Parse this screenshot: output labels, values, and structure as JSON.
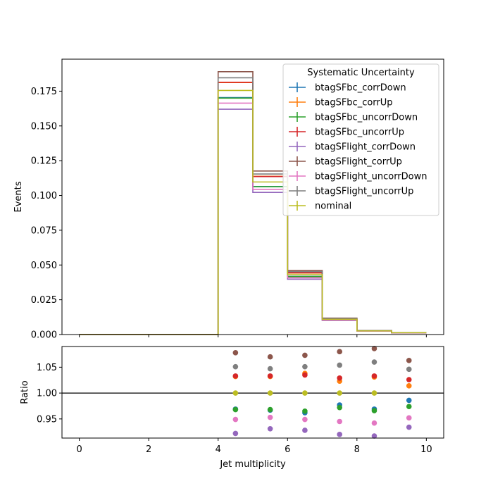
{
  "chart_data": {
    "type": "line",
    "main_panel": {
      "ylabel": "Events",
      "ylim": [
        0,
        0.198
      ],
      "yticks": [
        "0.000",
        "0.025",
        "0.050",
        "0.075",
        "0.100",
        "0.125",
        "0.150",
        "0.175"
      ],
      "bin_edges": [
        0,
        1,
        2,
        3,
        4,
        5,
        6,
        7,
        8,
        9,
        10
      ],
      "style": "step",
      "series": [
        {
          "name": "btagSFbc_corrDown",
          "color": "#1f77b4",
          "values": [
            0,
            0,
            0,
            0,
            0.1704,
            0.1064,
            0.0418,
            0.0106,
            0.0026,
            0.0012
          ]
        },
        {
          "name": "btagSFbc_corrUp",
          "color": "#ff7f0e",
          "values": [
            0,
            0,
            0,
            0,
            0.1812,
            0.1138,
            0.0442,
            0.0111,
            0.0027,
            0.0014
          ]
        },
        {
          "name": "btagSFbc_uncorrDown",
          "color": "#2ca02c",
          "values": [
            0,
            0,
            0,
            0,
            0.17,
            0.1063,
            0.0416,
            0.0106,
            0.0026,
            0.0012
          ]
        },
        {
          "name": "btagSFbc_uncorrUp",
          "color": "#d62728",
          "values": [
            0,
            0,
            0,
            0,
            0.1814,
            0.1136,
            0.0444,
            0.0112,
            0.0027,
            0.0013
          ]
        },
        {
          "name": "btagSFlight_corrDown",
          "color": "#9467bd",
          "values": [
            0,
            0,
            0,
            0,
            0.162,
            0.1022,
            0.0398,
            0.0101,
            0.0024,
            0.0011
          ]
        },
        {
          "name": "btagSFlight_corrUp",
          "color": "#8c564b",
          "values": [
            0,
            0,
            0,
            0,
            0.189,
            0.1176,
            0.046,
            0.0118,
            0.0029,
            0.0014
          ]
        },
        {
          "name": "btagSFlight_uncorrDown",
          "color": "#e377c2",
          "values": [
            0,
            0,
            0,
            0,
            0.1664,
            0.1044,
            0.0408,
            0.0104,
            0.0025,
            0.0012
          ]
        },
        {
          "name": "btagSFlight_uncorrUp",
          "color": "#7f7f7f",
          "values": [
            0,
            0,
            0,
            0,
            0.1846,
            0.1154,
            0.0452,
            0.0115,
            0.0028,
            0.0014
          ]
        },
        {
          "name": "nominal",
          "color": "#bcbd22",
          "values": [
            0,
            0,
            0,
            0,
            0.1755,
            0.1097,
            0.043,
            0.0109,
            0.0026,
            0.0013
          ]
        }
      ],
      "legend": {
        "title": "Systematic Uncertainty",
        "placement": "top-right"
      }
    },
    "ratio_panel": {
      "ylabel": "Ratio",
      "ylim": [
        0.913,
        1.09
      ],
      "yticks": [
        "0.95",
        "1.00",
        "1.05"
      ],
      "reference_line": 1.0,
      "x": [
        4.5,
        5.5,
        6.5,
        7.5,
        8.5,
        9.5
      ],
      "series": [
        {
          "name": "btagSFbc_corrDown",
          "color": "#1f77b4",
          "values": [
            0.969,
            0.967,
            0.962,
            0.977,
            0.969,
            0.986
          ]
        },
        {
          "name": "btagSFbc_corrUp",
          "color": "#ff7f0e",
          "values": [
            1.032,
            1.032,
            1.038,
            1.023,
            1.031,
            1.014
          ]
        },
        {
          "name": "btagSFbc_uncorrDown",
          "color": "#2ca02c",
          "values": [
            0.968,
            0.968,
            0.965,
            0.972,
            0.966,
            0.974
          ]
        },
        {
          "name": "btagSFbc_uncorrUp",
          "color": "#d62728",
          "values": [
            1.033,
            1.033,
            1.035,
            1.029,
            1.033,
            1.026
          ]
        },
        {
          "name": "btagSFlight_corrDown",
          "color": "#9467bd",
          "values": [
            0.922,
            0.931,
            0.928,
            0.92,
            0.917,
            0.934
          ]
        },
        {
          "name": "btagSFlight_corrUp",
          "color": "#8c564b",
          "values": [
            1.078,
            1.07,
            1.073,
            1.08,
            1.086,
            1.063
          ]
        },
        {
          "name": "btagSFlight_uncorrDown",
          "color": "#e377c2",
          "values": [
            0.949,
            0.953,
            0.949,
            0.945,
            0.942,
            0.952
          ]
        },
        {
          "name": "btagSFlight_uncorrUp",
          "color": "#7f7f7f",
          "values": [
            1.051,
            1.047,
            1.051,
            1.054,
            1.06,
            1.046
          ]
        },
        {
          "name": "nominal",
          "color": "#bcbd22",
          "values": [
            1.0,
            1.0,
            1.0,
            1.0,
            1.0,
            null
          ]
        }
      ]
    },
    "xlabel": "Jet multiplicity",
    "xlim": [
      -0.5,
      10.5
    ],
    "xticks": [
      "0",
      "2",
      "4",
      "6",
      "8",
      "10"
    ]
  }
}
